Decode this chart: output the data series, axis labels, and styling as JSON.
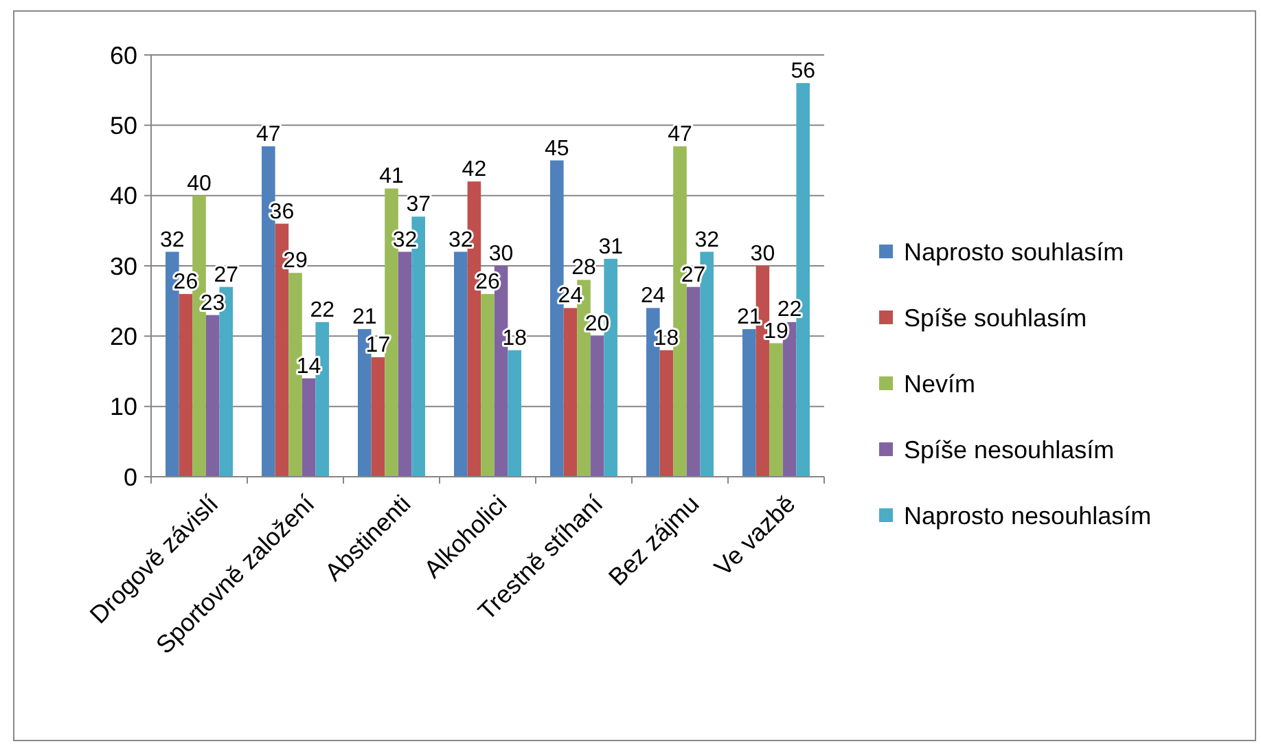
{
  "chart_data": {
    "type": "bar",
    "categories": [
      "Drogově závislí",
      "Sportovně založení",
      "Abstinenti",
      "Alkoholici",
      "Trestně stíhaní",
      "Bez zájmu",
      "Ve vazbě"
    ],
    "series": [
      {
        "name": "Naprosto souhlasím",
        "color": "#4f81bd",
        "values": [
          32,
          47,
          21,
          32,
          45,
          24,
          21
        ]
      },
      {
        "name": "Spíše souhlasím",
        "color": "#c0504d",
        "values": [
          26,
          36,
          17,
          42,
          24,
          18,
          30
        ]
      },
      {
        "name": "Nevím",
        "color": "#9bbb59",
        "values": [
          40,
          29,
          41,
          26,
          28,
          47,
          19
        ]
      },
      {
        "name": "Spíše nesouhlasím",
        "color": "#8064a2",
        "values": [
          23,
          14,
          32,
          30,
          20,
          27,
          22
        ]
      },
      {
        "name": "Naprosto nesouhlasím",
        "color": "#4bacc6",
        "values": [
          27,
          22,
          37,
          18,
          31,
          32,
          56
        ]
      }
    ],
    "ylim": [
      0,
      60
    ],
    "yticks": [
      0,
      10,
      20,
      30,
      40,
      50,
      60
    ],
    "grid": "y",
    "legend": "right",
    "data_labels": true
  }
}
